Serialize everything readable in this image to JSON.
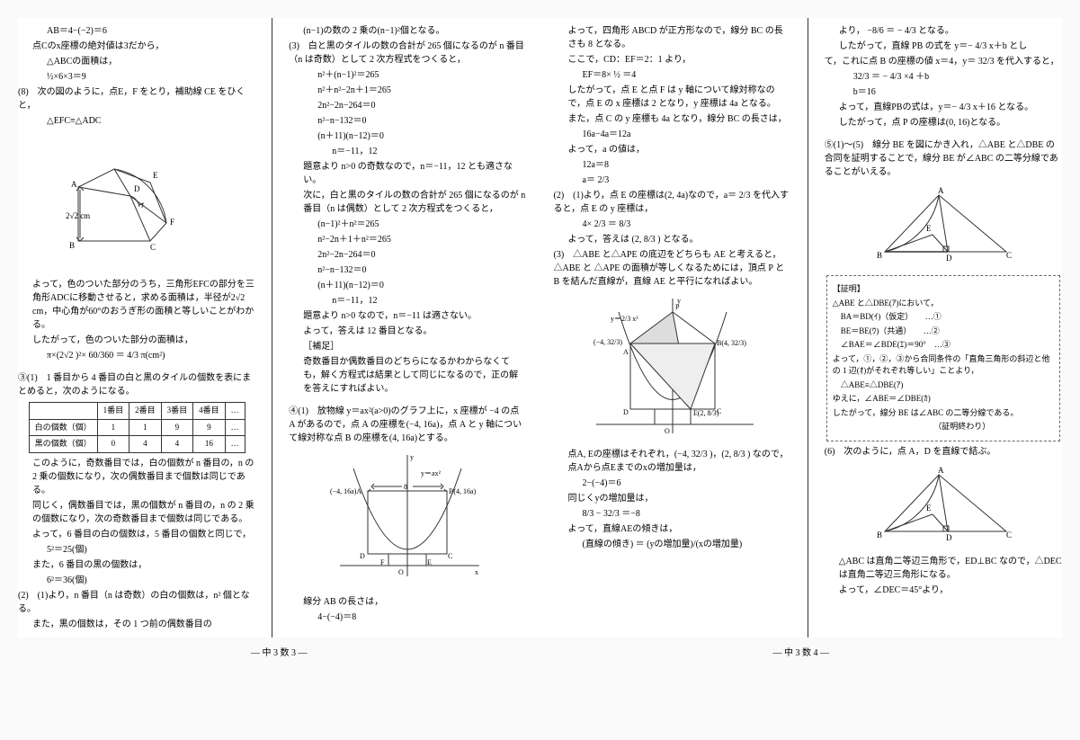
{
  "footer": {
    "left": "— 中 3 数 3 —",
    "right": "— 中 3 数 4 —"
  },
  "col1": [
    {
      "cls": "idt2",
      "t": "AB＝4−(−2)＝6"
    },
    {
      "cls": "idt1",
      "t": "点Cのx座標の絶対値は3だから，"
    },
    {
      "cls": "idt2",
      "t": "△ABCの面積は，"
    },
    {
      "cls": "idt2",
      "t": "½×6×3＝9"
    },
    {
      "cls": "",
      "t": "(8)　次の図のように，点E，F をとり，補助線 CE をひくと，"
    },
    {
      "cls": "idt2",
      "t": "△EFC≡△ADC"
    }
  ],
  "col1_fig": {
    "labels": {
      "A": "A",
      "B": "B",
      "C": "C",
      "D": "D",
      "E": "E",
      "F": "F",
      "side": "2√2 cm"
    }
  },
  "col1b": [
    {
      "cls": "idt1",
      "t": "よって，色のついた部分のうち，三角形EFCの部分を三角形ADCに移動させると，求める面積は，半径が2√2 cm，中心角が60°のおうぎ形の面積と等しいことがわかる。"
    },
    {
      "cls": "idt1",
      "t": "したがって，色のついた部分の面積は，"
    },
    {
      "cls": "idt2",
      "t": "π×(2√2 )²× 60/360 ＝ 4/3 π(cm²)"
    }
  ],
  "q3": {
    "head": "③(1)　1 番目から 4 番目の白と黒のタイルの個数を表にまとめると，次のようになる。",
    "table": {
      "header": [
        "",
        "1番目",
        "2番目",
        "3番目",
        "4番目",
        "…"
      ],
      "rows": [
        [
          "白の個数（個）",
          "1",
          "1",
          "9",
          "9",
          "…"
        ],
        [
          "黒の個数（個）",
          "0",
          "4",
          "4",
          "16",
          "…"
        ]
      ]
    },
    "body": [
      {
        "cls": "idt1",
        "t": "このように，奇数番目では，白の個数が n 番目の，n の 2 乗の個数になり，次の偶数番目まで個数は同じである。"
      },
      {
        "cls": "idt1",
        "t": "同じく，偶数番目では，黒の個数が n 番目の，n の 2 乗の個数になり，次の奇数番目まで個数は同じである。"
      },
      {
        "cls": "idt1",
        "t": "よって，6 番目の白の個数は，5 番目の個数と同じで，"
      },
      {
        "cls": "idt2",
        "t": "5²＝25(個)"
      },
      {
        "cls": "idt1",
        "t": "また，6 番目の黒の個数は，"
      },
      {
        "cls": "idt2",
        "t": "6²＝36(個)"
      },
      {
        "cls": "",
        "t": "(2)　(1)より，n 番目（n は奇数）の白の個数は，n² 個となる。"
      },
      {
        "cls": "idt1",
        "t": "また，黒の個数は，その 1 つ前の偶数番目の"
      }
    ]
  },
  "col2": [
    {
      "cls": "idt1",
      "t": "(n−1)の数の 2 乗の(n−1)²個となる。"
    },
    {
      "cls": "",
      "t": "(3)　白と黒のタイルの数の合計が 265 個になるのが n 番目（n は奇数）として 2 次方程式をつくると，"
    },
    {
      "cls": "idt2",
      "t": "n²＋(n−1)²＝265"
    },
    {
      "cls": "idt2",
      "t": "n²＋n²−2n＋1＝265"
    },
    {
      "cls": "idt2",
      "t": "2n²−2n−264＝0"
    },
    {
      "cls": "idt2",
      "t": "n²−n−132＝0"
    },
    {
      "cls": "idt2",
      "t": "(n＋11)(n−12)＝0"
    },
    {
      "cls": "idt3",
      "t": "n＝−11，12"
    },
    {
      "cls": "idt1",
      "t": "題意より n>0 の奇数なので，n＝−11，12 とも適さない。"
    },
    {
      "cls": "idt1",
      "t": "次に，白と黒のタイルの数の合計が 265 個になるのが n 番目（n は偶数）として 2 次方程式をつくると，"
    },
    {
      "cls": "idt2",
      "t": "(n−1)²＋n²＝265"
    },
    {
      "cls": "idt2",
      "t": "n²−2n＋1＋n²＝265"
    },
    {
      "cls": "idt2",
      "t": "2n²−2n−264＝0"
    },
    {
      "cls": "idt2",
      "t": "n²−n−132＝0"
    },
    {
      "cls": "idt2",
      "t": "(n＋11)(n−12)＝0"
    },
    {
      "cls": "idt3",
      "t": "n＝−11，12"
    },
    {
      "cls": "idt1",
      "t": "題意より n>0 なので，n＝−11 は適さない。"
    },
    {
      "cls": "idt1",
      "t": "よって，答えは 12 番目となる。"
    },
    {
      "cls": "idt1",
      "t": "［補足］"
    },
    {
      "cls": "idt1",
      "t": "奇数番目か偶数番目のどちらになるかわからなくても，解く方程式は結果として同じになるので，正の解を答えにすればよい。"
    }
  ],
  "q4": {
    "head": "④(1)　放物線 y＝ax²(a>0)のグラフ上に，x 座標が −4 の点 A があるので，点 A の座標を(−4, 16a)，点 A と y 軸について線対称な点 B の座標を(4, 16a)とする。",
    "fig_labels": {
      "A": "(−4, 16a)A",
      "B": "B(4, 16a)",
      "C": "C",
      "D": "D",
      "E": "E",
      "F": "F",
      "O": "O",
      "ylab": "y",
      "xlab": "x",
      "curve": "y＝ax²",
      "len": "8"
    },
    "tail": [
      {
        "cls": "idt1",
        "t": "線分 AB の長さは，"
      },
      {
        "cls": "idt2",
        "t": "4−(−4)＝8"
      }
    ]
  },
  "col3": [
    {
      "cls": "idt1",
      "t": "よって，四角形 ABCD が正方形なので，線分 BC の長さも 8 となる。"
    },
    {
      "cls": "idt1",
      "t": "ここで，CD：EF＝2：1 より，"
    },
    {
      "cls": "idt2",
      "t": "EF＝8× ½ ＝4"
    },
    {
      "cls": "idt1",
      "t": "したがって，点 E と点 F は y 軸について線対称なので，点 E の x 座標は 2 となり，y 座標は 4a となる。"
    },
    {
      "cls": "idt1",
      "t": "また，点 C の y 座標も 4a となり，線分 BC の長さは，"
    },
    {
      "cls": "idt2",
      "t": "16a−4a＝12a"
    },
    {
      "cls": "idt1",
      "t": "よって，a の値は，"
    },
    {
      "cls": "idt2",
      "t": "12a＝8"
    },
    {
      "cls": "idt2",
      "t": "a＝ 2/3"
    },
    {
      "cls": "",
      "t": "(2)　(1)より，点 E の座標は(2, 4a)なので，a＝ 2/3 を代入すると，点 E の y 座標は，"
    },
    {
      "cls": "idt2",
      "t": "4× 2/3 ＝ 8/3"
    },
    {
      "cls": "idt1",
      "t": "よって，答えは (2, 8/3 ) となる。"
    },
    {
      "cls": "",
      "t": "(3)　△ABE と△APE の底辺をどちらも AE と考えると，△ABE と △APE の面積が等しくなるためには，頂点 P と B を結んだ直線が，直線 AE と平行になればよい。"
    }
  ],
  "col3_fig": {
    "labels": {
      "A": "(−4, 32/3)",
      "ALet": "A",
      "B": "B(4, 32/3)",
      "D": "D",
      "C": "C",
      "E": "E(2, 8/3)",
      "P": "P",
      "O": "O",
      "ylab": "y",
      "curve": "y＝2/3 x²"
    }
  },
  "col3b": [
    {
      "cls": "idt1",
      "t": "点A, Eの座標はそれぞれ，(−4, 32/3 )，(2, 8/3 ) なので，点Aから点Eまでのxの増加量は，"
    },
    {
      "cls": "idt2",
      "t": "2−(−4)＝6"
    },
    {
      "cls": "idt1",
      "t": "同じくyの増加量は，"
    },
    {
      "cls": "idt2",
      "t": "8/3 − 32/3 ＝−8"
    },
    {
      "cls": "idt1",
      "t": "よって，直線AEの傾きは，"
    },
    {
      "cls": "idt2",
      "t": "(直線の傾き) ＝ (yの増加量)/(xの増加量)"
    }
  ],
  "col4": [
    {
      "cls": "idt1",
      "t": "より， −8/6 ＝ − 4/3 となる。"
    },
    {
      "cls": "idt1",
      "t": "したがって，直線 PB の式を y＝− 4/3 x＋b とし"
    },
    {
      "cls": "",
      "t": "て，これに点 B の座標の値 x＝4，y＝ 32/3 を代入すると，"
    },
    {
      "cls": "idt2",
      "t": "32/3 ＝ − 4/3 ×4 ＋b"
    },
    {
      "cls": "idt2",
      "t": "b＝16"
    },
    {
      "cls": "idt1",
      "t": "よって，直線PBの式は，y＝− 4/3 x＋16 となる。"
    },
    {
      "cls": "idt1",
      "t": "したがって，点 P の座標は(0, 16)となる。"
    }
  ],
  "q5": {
    "head": "⑤(1)〜(5)　線分 BE を図にかき入れ，△ABE と△DBE の合同を証明することで，線分 BE が∠ABC の二等分線であることがいえる。",
    "fig_labels": {
      "A": "A",
      "B": "B",
      "C": "C",
      "D": "D",
      "E": "E"
    },
    "proof": {
      "title": "【証明】",
      "lines": [
        "△ABE と△DBE(ｱ)において，",
        "　BA＝BD(ｲ)（仮定）　　…①",
        "　BE＝BE(ｳ)（共通）　　…②",
        "　∠BAE＝∠BDE(ｴ)＝90°　…③",
        "よって，①，②，③から合同条件の「直角三角形の斜辺と他の 1 辺(ｵ)がそれぞれ等しい」ことより，",
        "　△ABE≡△DBE(ｱ)",
        "ゆえに，∠ABE＝∠DBE(ｶ)",
        "したがって，線分 BE は∠ABC の二等分線である。",
        "　　　　　　　　　　　　　（証明終わり）"
      ]
    },
    "q6": "(6)　次のように，点 A，D を直線で結ぶ。",
    "tail": [
      {
        "cls": "idt1",
        "t": "△ABC は直角二等辺三角形で，ED⊥BC なので，△DEC は直角二等辺三角形になる。"
      },
      {
        "cls": "idt1",
        "t": "よって，∠DEC＝45°より，"
      }
    ]
  }
}
